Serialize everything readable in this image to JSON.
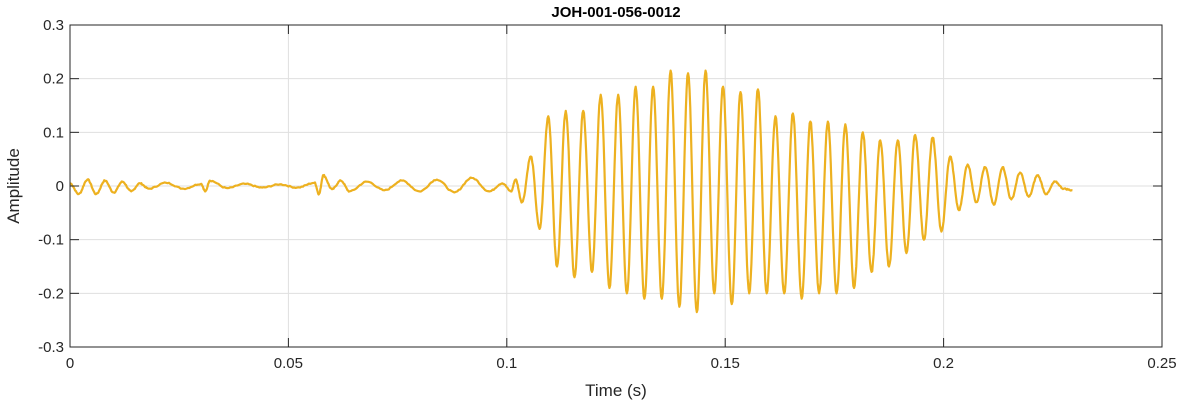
{
  "chart_data": {
    "type": "line",
    "title": "JOH-001-056-0012",
    "xlabel": "Time (s)",
    "ylabel": "Amplitude",
    "xlim": [
      0,
      0.25
    ],
    "ylim": [
      -0.3,
      0.3
    ],
    "xticks": [
      0,
      0.05,
      0.1,
      0.15,
      0.2,
      0.25
    ],
    "xtick_labels": [
      "0",
      "0.05",
      "0.1",
      "0.15",
      "0.2",
      "0.25"
    ],
    "yticks": [
      -0.3,
      -0.2,
      -0.1,
      0,
      0.1,
      0.2,
      0.3
    ],
    "ytick_labels": [
      "-0.3",
      "-0.2",
      "-0.1",
      "0",
      "0.1",
      "0.2",
      "0.3"
    ],
    "grid": true,
    "series": [
      {
        "color": "#EDB120",
        "extrema": [
          [
            0.0,
            0.005
          ],
          [
            0.002,
            -0.015
          ],
          [
            0.004,
            0.012
          ],
          [
            0.006,
            -0.015
          ],
          [
            0.008,
            0.01
          ],
          [
            0.01,
            -0.012
          ],
          [
            0.012,
            0.008
          ],
          [
            0.014,
            -0.01
          ],
          [
            0.016,
            0.005
          ],
          [
            0.018,
            -0.005
          ],
          [
            0.022,
            0.006
          ],
          [
            0.026,
            -0.005
          ],
          [
            0.03,
            0.004
          ],
          [
            0.031,
            -0.01
          ],
          [
            0.032,
            0.01
          ],
          [
            0.036,
            -0.004
          ],
          [
            0.04,
            0.004
          ],
          [
            0.044,
            -0.003
          ],
          [
            0.048,
            0.003
          ],
          [
            0.052,
            -0.003
          ],
          [
            0.056,
            0.006
          ],
          [
            0.057,
            -0.015
          ],
          [
            0.058,
            0.02
          ],
          [
            0.06,
            -0.006
          ],
          [
            0.062,
            0.01
          ],
          [
            0.064,
            -0.01
          ],
          [
            0.068,
            0.008
          ],
          [
            0.072,
            -0.008
          ],
          [
            0.076,
            0.01
          ],
          [
            0.08,
            -0.01
          ],
          [
            0.084,
            0.012
          ],
          [
            0.088,
            -0.012
          ],
          [
            0.092,
            0.015
          ],
          [
            0.096,
            -0.01
          ],
          [
            0.099,
            0.005
          ],
          [
            0.101,
            -0.01
          ],
          [
            0.102,
            0.012
          ],
          [
            0.1035,
            -0.03
          ],
          [
            0.1055,
            0.055
          ],
          [
            0.1075,
            -0.08
          ],
          [
            0.1095,
            0.13
          ],
          [
            0.1115,
            -0.15
          ],
          [
            0.1135,
            0.14
          ],
          [
            0.1155,
            -0.17
          ],
          [
            0.1175,
            0.14
          ],
          [
            0.1195,
            -0.16
          ],
          [
            0.1215,
            0.17
          ],
          [
            0.1235,
            -0.19
          ],
          [
            0.1255,
            0.17
          ],
          [
            0.1275,
            -0.2
          ],
          [
            0.1295,
            0.185
          ],
          [
            0.1315,
            -0.21
          ],
          [
            0.1335,
            0.185
          ],
          [
            0.1355,
            -0.21
          ],
          [
            0.1375,
            0.215
          ],
          [
            0.1395,
            -0.225
          ],
          [
            0.1415,
            0.21
          ],
          [
            0.1435,
            -0.235
          ],
          [
            0.1455,
            0.215
          ],
          [
            0.1475,
            -0.2
          ],
          [
            0.1495,
            0.185
          ],
          [
            0.1515,
            -0.22
          ],
          [
            0.1535,
            0.175
          ],
          [
            0.1555,
            -0.2
          ],
          [
            0.1575,
            0.18
          ],
          [
            0.1595,
            -0.2
          ],
          [
            0.1615,
            0.13
          ],
          [
            0.1635,
            -0.2
          ],
          [
            0.1655,
            0.135
          ],
          [
            0.1675,
            -0.21
          ],
          [
            0.1695,
            0.12
          ],
          [
            0.1715,
            -0.2
          ],
          [
            0.1735,
            0.12
          ],
          [
            0.1755,
            -0.2
          ],
          [
            0.1775,
            0.115
          ],
          [
            0.1795,
            -0.19
          ],
          [
            0.1815,
            0.1
          ],
          [
            0.1835,
            -0.16
          ],
          [
            0.1855,
            0.085
          ],
          [
            0.1875,
            -0.15
          ],
          [
            0.1895,
            0.085
          ],
          [
            0.1915,
            -0.125
          ],
          [
            0.1935,
            0.095
          ],
          [
            0.1955,
            -0.1
          ],
          [
            0.1975,
            0.09
          ],
          [
            0.1995,
            -0.085
          ],
          [
            0.2015,
            0.055
          ],
          [
            0.2035,
            -0.045
          ],
          [
            0.2055,
            0.04
          ],
          [
            0.2075,
            -0.03
          ],
          [
            0.2095,
            0.035
          ],
          [
            0.2115,
            -0.035
          ],
          [
            0.2135,
            0.035
          ],
          [
            0.2155,
            -0.025
          ],
          [
            0.2175,
            0.025
          ],
          [
            0.2195,
            -0.02
          ],
          [
            0.2215,
            0.02
          ],
          [
            0.2235,
            -0.015
          ],
          [
            0.2255,
            0.008
          ],
          [
            0.2275,
            -0.005
          ],
          [
            0.2295,
            -0.008
          ]
        ]
      }
    ]
  }
}
